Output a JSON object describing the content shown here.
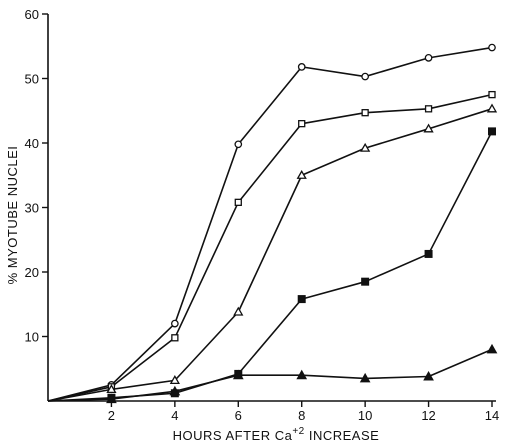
{
  "chart_data": {
    "type": "line",
    "title": "",
    "xlabel": "HOURS AFTER Ca",
    "xlabel_superscript": "+2",
    "xlabel_suffix": " INCREASE",
    "ylabel": "% MYOTUBE NUCLEI",
    "xlim": [
      0,
      14
    ],
    "ylim": [
      0,
      60
    ],
    "x_ticks": [
      2,
      4,
      6,
      8,
      10,
      12,
      14
    ],
    "y_ticks": [
      10,
      20,
      30,
      40,
      50,
      60
    ],
    "grid": false,
    "series": [
      {
        "marker": "open-circle",
        "x": [
          0,
          2,
          4,
          6,
          8,
          10,
          12,
          14
        ],
        "values": [
          0,
          2.5,
          12,
          39.8,
          51.8,
          50.3,
          53.2,
          54.8
        ]
      },
      {
        "marker": "open-square",
        "x": [
          0,
          2,
          4,
          6,
          8,
          10,
          12,
          14
        ],
        "values": [
          0,
          2.2,
          9.8,
          30.8,
          43,
          44.7,
          45.3,
          47.5
        ]
      },
      {
        "marker": "open-triangle",
        "x": [
          0,
          2,
          4,
          6,
          8,
          10,
          12,
          14
        ],
        "values": [
          0,
          1.8,
          3.2,
          13.8,
          35,
          39.2,
          42.2,
          45.3
        ]
      },
      {
        "marker": "filled-square",
        "x": [
          0,
          2,
          4,
          6,
          8,
          10,
          12,
          14
        ],
        "values": [
          0,
          0.5,
          1.2,
          4.2,
          15.8,
          18.5,
          22.8,
          41.8
        ]
      },
      {
        "marker": "filled-triangle",
        "x": [
          0,
          2,
          4,
          6,
          8,
          10,
          12,
          14
        ],
        "values": [
          0,
          0.3,
          1.5,
          4,
          4,
          3.5,
          3.8,
          8
        ]
      }
    ]
  }
}
